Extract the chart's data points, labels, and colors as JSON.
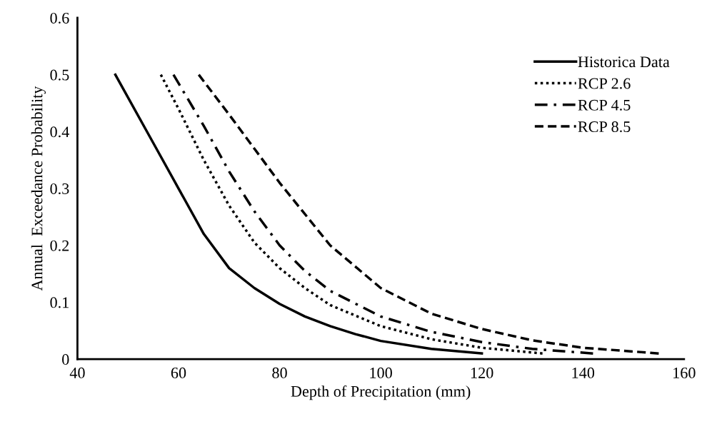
{
  "chart_data": {
    "type": "line",
    "xlabel": "Depth of Precipitation (mm)",
    "ylabel": "Annual  Exceedance Probability",
    "xlim": [
      40,
      160
    ],
    "xticks": [
      40,
      60,
      80,
      100,
      120,
      140,
      160
    ],
    "ylim": [
      0,
      0.6
    ],
    "yticks": [
      0,
      0.1,
      0.2,
      0.3,
      0.4,
      0.5,
      0.6
    ],
    "grid": false,
    "legend": "top right",
    "marker": "none",
    "series": [
      {
        "name": "Historica Data",
        "color": "#000000",
        "line_style": "solid",
        "x": [
          47.5,
          55,
          60,
          65,
          70,
          75,
          80,
          85,
          90,
          95,
          100,
          110,
          120
        ],
        "values": [
          0.5,
          0.38,
          0.3,
          0.22,
          0.16,
          0.125,
          0.097,
          0.075,
          0.058,
          0.044,
          0.032,
          0.018,
          0.01
        ]
      },
      {
        "name": "RCP 2.6",
        "color": "#000000",
        "line_style": "dotted",
        "x": [
          56.5,
          60,
          65,
          70,
          75,
          80,
          85,
          90,
          100,
          110,
          120,
          132
        ],
        "values": [
          0.5,
          0.44,
          0.35,
          0.27,
          0.205,
          0.16,
          0.125,
          0.095,
          0.058,
          0.035,
          0.02,
          0.01
        ]
      },
      {
        "name": "RCP 4.5",
        "color": "#000000",
        "line_style": "dashdot",
        "x": [
          59,
          65,
          70,
          75,
          80,
          85,
          90,
          100,
          110,
          120,
          130,
          142
        ],
        "values": [
          0.5,
          0.41,
          0.33,
          0.26,
          0.2,
          0.155,
          0.12,
          0.075,
          0.048,
          0.03,
          0.018,
          0.01
        ]
      },
      {
        "name": "RCP 8.5",
        "color": "#000000",
        "line_style": "dashed",
        "x": [
          64,
          70,
          75,
          80,
          90,
          100,
          110,
          120,
          130,
          140,
          155
        ],
        "values": [
          0.5,
          0.43,
          0.37,
          0.31,
          0.2,
          0.125,
          0.08,
          0.053,
          0.033,
          0.02,
          0.01
        ]
      }
    ]
  }
}
